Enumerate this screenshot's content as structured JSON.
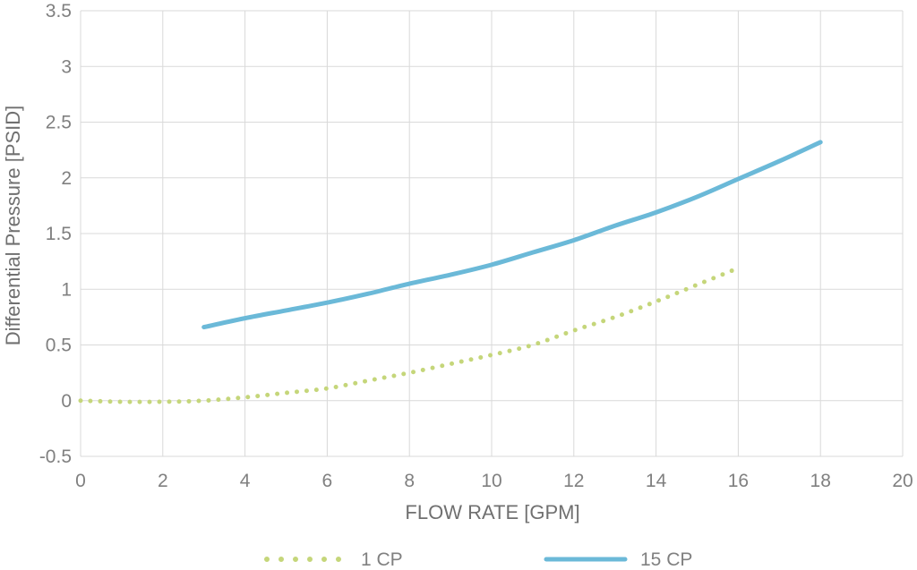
{
  "chart_data": {
    "type": "line",
    "title": "",
    "xlabel": "FLOW RATE [GPM]",
    "ylabel": "Differential Pressure [PSID]",
    "xlim": [
      0,
      20
    ],
    "ylim": [
      -0.5,
      3.5
    ],
    "x_ticks": [
      0,
      2,
      4,
      6,
      8,
      10,
      12,
      14,
      16,
      18,
      20
    ],
    "y_ticks": [
      -0.5,
      0,
      0.5,
      1,
      1.5,
      2,
      2.5,
      3,
      3.5
    ],
    "y_tick_labels": [
      "-0.5",
      "0",
      "0.5",
      "1",
      "1.5",
      "2",
      "2.5",
      "3",
      "3.5"
    ],
    "grid": true,
    "legend_position": "bottom",
    "series": [
      {
        "name": "1 CP",
        "color": "#c5d67a",
        "style": "dotted",
        "x": [
          0,
          1,
          2,
          3,
          4,
          5,
          6,
          7,
          8,
          9,
          10,
          11,
          12,
          13,
          14,
          15,
          16
        ],
        "y": [
          0.0,
          -0.01,
          -0.01,
          0.0,
          0.03,
          0.07,
          0.11,
          0.18,
          0.25,
          0.33,
          0.41,
          0.5,
          0.63,
          0.75,
          0.89,
          1.04,
          1.19
        ]
      },
      {
        "name": "15 CP",
        "color": "#6bb9d8",
        "style": "solid",
        "x": [
          3,
          4,
          5,
          6,
          7,
          8,
          9,
          10,
          11,
          12,
          13,
          14,
          15,
          16,
          17,
          18
        ],
        "y": [
          0.66,
          0.74,
          0.81,
          0.88,
          0.96,
          1.05,
          1.13,
          1.22,
          1.33,
          1.44,
          1.57,
          1.69,
          1.83,
          1.99,
          2.15,
          2.32
        ]
      }
    ]
  }
}
